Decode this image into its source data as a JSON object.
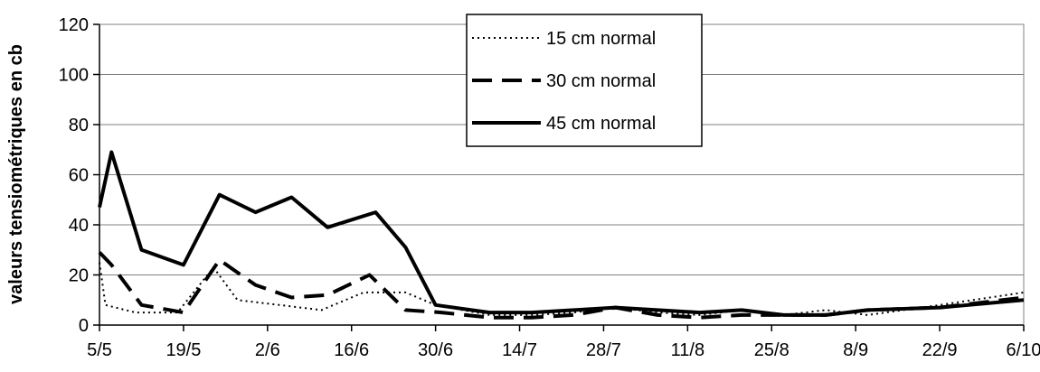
{
  "chart_data": {
    "type": "line",
    "ylabel": "valeurs tensiométriques en cb",
    "xlabel": "",
    "ylim": [
      0,
      120
    ],
    "yticks": [
      0,
      20,
      40,
      60,
      80,
      100,
      120
    ],
    "x_tick_labels": [
      "5/5",
      "19/5",
      "2/6",
      "16/6",
      "30/6",
      "14/7",
      "28/7",
      "11/8",
      "25/8",
      "8/9",
      "22/9",
      "6/10"
    ],
    "x_unit_note": "day index from 5/5",
    "x_range": [
      0,
      154
    ],
    "grid": "horizontal",
    "legend_position": "top-center",
    "series": [
      {
        "name": "15 cm normal",
        "style": "dotted",
        "points": [
          [
            0,
            25
          ],
          [
            1,
            8
          ],
          [
            6,
            5
          ],
          [
            13,
            5
          ],
          [
            19,
            23
          ],
          [
            23,
            10
          ],
          [
            30,
            8
          ],
          [
            37,
            6
          ],
          [
            44,
            13
          ],
          [
            51,
            13
          ],
          [
            56,
            8
          ],
          [
            65,
            4
          ],
          [
            72,
            4
          ],
          [
            79,
            5
          ],
          [
            86,
            7
          ],
          [
            93,
            5
          ],
          [
            100,
            4
          ],
          [
            107,
            6
          ],
          [
            114,
            4
          ],
          [
            121,
            6
          ],
          [
            128,
            4
          ],
          [
            140,
            8
          ],
          [
            154,
            13
          ]
        ]
      },
      {
        "name": "30 cm normal",
        "style": "dashed",
        "points": [
          [
            0,
            29
          ],
          [
            2,
            24
          ],
          [
            7,
            8
          ],
          [
            14,
            5
          ],
          [
            20,
            26
          ],
          [
            26,
            16
          ],
          [
            32,
            11
          ],
          [
            38,
            12
          ],
          [
            45,
            20
          ],
          [
            51,
            6
          ],
          [
            57,
            5
          ],
          [
            65,
            3
          ],
          [
            72,
            3
          ],
          [
            79,
            4
          ],
          [
            86,
            7
          ],
          [
            93,
            4
          ],
          [
            100,
            3
          ],
          [
            107,
            4
          ],
          [
            114,
            4
          ],
          [
            121,
            4
          ],
          [
            128,
            6
          ],
          [
            140,
            7
          ],
          [
            154,
            11
          ]
        ]
      },
      {
        "name": "45 cm normal",
        "style": "solid",
        "points": [
          [
            0,
            47
          ],
          [
            2,
            69
          ],
          [
            7,
            30
          ],
          [
            14,
            24
          ],
          [
            20,
            52
          ],
          [
            26,
            45
          ],
          [
            32,
            51
          ],
          [
            38,
            39
          ],
          [
            46,
            45
          ],
          [
            51,
            31
          ],
          [
            56,
            8
          ],
          [
            65,
            5
          ],
          [
            72,
            5
          ],
          [
            79,
            6
          ],
          [
            86,
            7
          ],
          [
            93,
            6
          ],
          [
            100,
            5
          ],
          [
            107,
            6
          ],
          [
            114,
            4
          ],
          [
            121,
            4
          ],
          [
            128,
            6
          ],
          [
            140,
            7
          ],
          [
            154,
            10
          ]
        ]
      }
    ]
  }
}
